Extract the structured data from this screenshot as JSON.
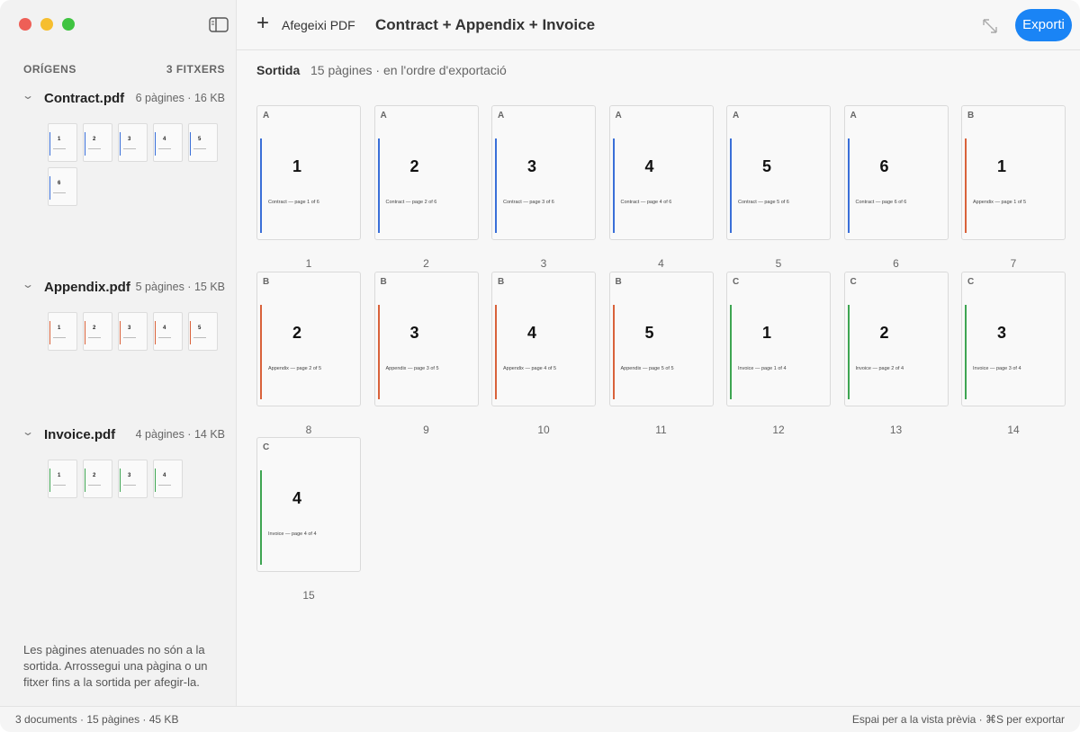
{
  "window": {
    "add_button": "Afegeixi PDF",
    "title": "Contract + Appendix + Invoice",
    "export_button": "Exporti"
  },
  "sidebar": {
    "heading": "ORÍGENS",
    "count": "3 FITXERS",
    "files": [
      {
        "name": "Contract.pdf",
        "meta": "6 pàgines · 16 KB",
        "letter": "A",
        "color": "#3a6fd8",
        "pages": [
          {
            "number": "1",
            "caption": "Contract — page 1 of 6"
          },
          {
            "number": "2",
            "caption": "Contract — page 2 of 6"
          },
          {
            "number": "3",
            "caption": "Contract — page 3 of 6"
          },
          {
            "number": "4",
            "caption": "Contract — page 4 of 6"
          },
          {
            "number": "5",
            "caption": "Contract — page 5 of 6"
          },
          {
            "number": "6",
            "caption": "Contract — page 6 of 6"
          }
        ]
      },
      {
        "name": "Appendix.pdf",
        "meta": "5 pàgines · 15 KB",
        "letter": "B",
        "color": "#d9623b",
        "pages": [
          {
            "number": "1",
            "caption": "Appendix — page 1 of 5"
          },
          {
            "number": "2",
            "caption": "Appendix — page 2 of 5"
          },
          {
            "number": "3",
            "caption": "Appendix — page 3 of 5"
          },
          {
            "number": "4",
            "caption": "Appendix — page 4 of 5"
          },
          {
            "number": "5",
            "caption": "Appendix — page 5 of 5"
          }
        ]
      },
      {
        "name": "Invoice.pdf",
        "meta": "4 pàgines · 14 KB",
        "letter": "C",
        "color": "#3ea552",
        "pages": [
          {
            "number": "1",
            "caption": "Invoice — page 1 of 4"
          },
          {
            "number": "2",
            "caption": "Invoice — page 2 of 4"
          },
          {
            "number": "3",
            "caption": "Invoice — page 3 of 4"
          },
          {
            "number": "4",
            "caption": "Invoice — page 4 of 4"
          }
        ]
      }
    ],
    "hint": "Les pàgines atenuades no són a la sortida. Arrossegui una pàgina o un fitxer fins a la sortida per afegir-la."
  },
  "output": {
    "heading": "Sortida",
    "subtitle": "15 pàgines · en l'ordre d'exportació",
    "positions": [
      "1",
      "2",
      "3",
      "4",
      "5",
      "6",
      "7",
      "8",
      "9",
      "10",
      "11",
      "12",
      "13",
      "14",
      "15"
    ]
  },
  "status": {
    "left": "3 documents · 15 pàgines · 45 KB",
    "right": "Espai per a la vista prèvia · ⌘S per exportar"
  }
}
